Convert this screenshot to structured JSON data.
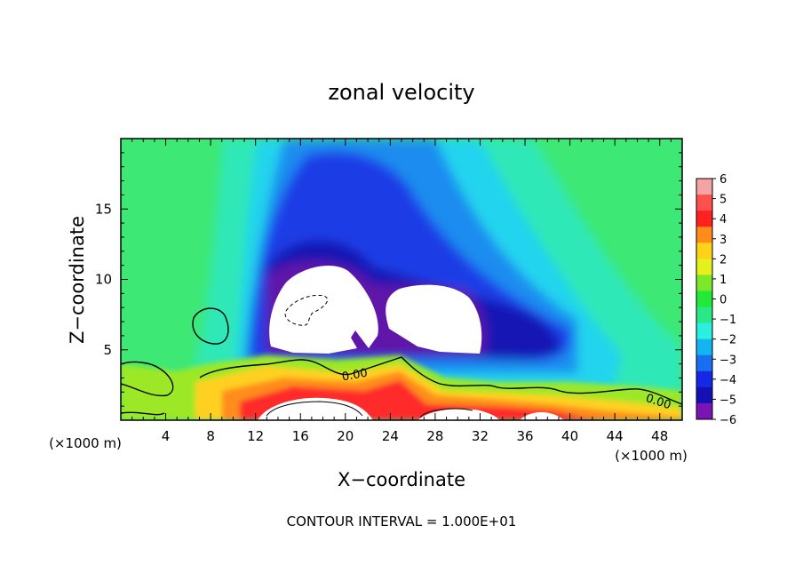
{
  "chart_data": {
    "type": "heatmap",
    "title": "zonal velocity",
    "xlabel": "X−coordinate",
    "ylabel": "Z−coordinate",
    "x_units_left": "(×1000 m)",
    "x_units_right": "(×1000 m)",
    "xlim": [
      0,
      50
    ],
    "ylim": [
      0,
      20
    ],
    "x_ticks": [
      4,
      8,
      12,
      16,
      20,
      24,
      28,
      32,
      36,
      40,
      44,
      48
    ],
    "x_tick_labels": [
      "4",
      "8",
      "12",
      "16",
      "20",
      "24",
      "28",
      "32",
      "36",
      "40",
      "44",
      "48"
    ],
    "y_ticks": [
      5,
      10,
      15
    ],
    "y_tick_labels": [
      "5",
      "10",
      "15"
    ],
    "footer": "CONTOUR INTERVAL = 1.000E+01",
    "contour_label": "0.00",
    "colorbar": {
      "levels": [
        6,
        5,
        4,
        3,
        2,
        1,
        0,
        -1,
        -2,
        -3,
        -4,
        -5,
        -6
      ],
      "labels": [
        "6",
        "5",
        "4",
        "3",
        "2",
        "1",
        "0",
        "−1",
        "−2",
        "−3",
        "−4",
        "−5",
        "−6"
      ],
      "colors": [
        "#f6a3a3",
        "#ff5050",
        "#ff2020",
        "#ff8c1a",
        "#ffd21a",
        "#e6f01a",
        "#7ce82a",
        "#22e838",
        "#2ae888",
        "#2af0e0",
        "#14b4f0",
        "#1a6ef0",
        "#1428e6",
        "#1410b4",
        "#7a14b4"
      ]
    },
    "background_color": "#3ee874",
    "fields": {
      "jet_core": "#1a3ce6",
      "strong_negative": "#6014a8",
      "saturated": "#ffffff",
      "surface_positive": "#ff2a2a",
      "surface_warm": "#ffd020",
      "surface_mid": "#9ce828"
    }
  }
}
